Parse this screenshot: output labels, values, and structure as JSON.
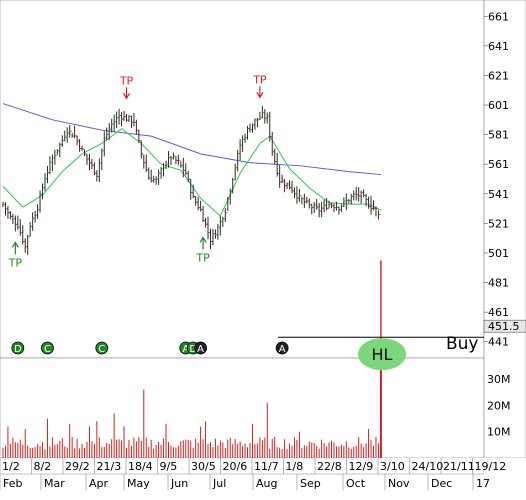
{
  "chart_data": {
    "type": "ohlc",
    "price_axis": {
      "ticks": [
        661,
        641,
        621,
        601,
        581,
        561,
        541,
        521,
        501,
        481,
        461,
        441
      ],
      "range": [
        430,
        672
      ],
      "last_price_label": "451.5",
      "last_price": 451.5
    },
    "volume_axis": {
      "ticks": [
        {
          "label": "30M",
          "value": 30
        },
        {
          "label": "20M",
          "value": 20
        },
        {
          "label": "10M",
          "value": 10
        }
      ],
      "range": [
        0,
        38
      ]
    },
    "date_labels": [
      "1/2",
      "8/2",
      "29/2",
      "21/3",
      "18/4",
      "9/5",
      "30/5",
      "20/6",
      "11/7",
      "1/8",
      "22/8",
      "12/9",
      "3/10",
      "24/10",
      "21/11",
      "19/12"
    ],
    "month_labels": [
      "Feb",
      "Mar",
      "Apr",
      "May",
      "Jun",
      "Jul",
      "Aug",
      "Sep",
      "Oct",
      "Nov",
      "Dec",
      "17"
    ],
    "price_series": {
      "anchors": [
        [
          0,
          534
        ],
        [
          3,
          525
        ],
        [
          6,
          520
        ],
        [
          9,
          505
        ],
        [
          11,
          520
        ],
        [
          14,
          532
        ],
        [
          17,
          552
        ],
        [
          20,
          565
        ],
        [
          23,
          574
        ],
        [
          26,
          584
        ],
        [
          29,
          580
        ],
        [
          32,
          570
        ],
        [
          35,
          562
        ],
        [
          38,
          554
        ],
        [
          41,
          578
        ],
        [
          44,
          588
        ],
        [
          47,
          594
        ],
        [
          50,
          592
        ],
        [
          53,
          590
        ],
        [
          56,
          568
        ],
        [
          59,
          552
        ],
        [
          62,
          550
        ],
        [
          65,
          560
        ],
        [
          68,
          566
        ],
        [
          71,
          562
        ],
        [
          74,
          555
        ],
        [
          77,
          538
        ],
        [
          80,
          530
        ],
        [
          82,
          520
        ],
        [
          84,
          510
        ],
        [
          87,
          518
        ],
        [
          90,
          530
        ],
        [
          93,
          552
        ],
        [
          96,
          574
        ],
        [
          99,
          584
        ],
        [
          102,
          590
        ],
        [
          105,
          594
        ],
        [
          107,
          592
        ],
        [
          109,
          570
        ],
        [
          112,
          550
        ],
        [
          116,
          546
        ],
        [
          120,
          538
        ],
        [
          124,
          533
        ],
        [
          128,
          530
        ],
        [
          132,
          534
        ],
        [
          136,
          532
        ],
        [
          139,
          536
        ],
        [
          142,
          540
        ],
        [
          145,
          540
        ],
        [
          148,
          534
        ],
        [
          151,
          530
        ],
        [
          153,
          523
        ],
        [
          154,
          520
        ]
      ],
      "ma_long": [
        [
          0,
          602
        ],
        [
          20,
          591
        ],
        [
          40,
          584
        ],
        [
          60,
          580
        ],
        [
          80,
          568
        ],
        [
          100,
          562
        ],
        [
          120,
          560
        ],
        [
          140,
          556
        ],
        [
          153,
          554
        ]
      ],
      "ma_short": [
        [
          0,
          546
        ],
        [
          8,
          532
        ],
        [
          16,
          540
        ],
        [
          24,
          556
        ],
        [
          32,
          568
        ],
        [
          40,
          575
        ],
        [
          48,
          585
        ],
        [
          56,
          575
        ],
        [
          64,
          561
        ],
        [
          72,
          557
        ],
        [
          80,
          538
        ],
        [
          88,
          526
        ],
        [
          96,
          555
        ],
        [
          104,
          575
        ],
        [
          108,
          580
        ],
        [
          116,
          558
        ],
        [
          124,
          545
        ],
        [
          132,
          535
        ],
        [
          140,
          534
        ],
        [
          148,
          534
        ],
        [
          153,
          530
        ]
      ],
      "breakout_candle": {
        "index": 153,
        "high": 496,
        "low": 440,
        "close": 451.5
      },
      "support_level": 444
    },
    "volume_series": {
      "base_level": 6,
      "spikes": [
        [
          2,
          12
        ],
        [
          9,
          11
        ],
        [
          18,
          15
        ],
        [
          27,
          13
        ],
        [
          35,
          12
        ],
        [
          38,
          14
        ],
        [
          45,
          17
        ],
        [
          49,
          12
        ],
        [
          57,
          26
        ],
        [
          66,
          13
        ],
        [
          80,
          12
        ],
        [
          82,
          14
        ],
        [
          101,
          13
        ],
        [
          107,
          21
        ],
        [
          120,
          10
        ],
        [
          148,
          11
        ]
      ],
      "last_bar": 36
    },
    "annotations": {
      "tp_markers": [
        {
          "label": "TP",
          "index": 5,
          "dir": "up"
        },
        {
          "label": "TP",
          "index": 50,
          "dir": "down"
        },
        {
          "label": "TP",
          "index": 81,
          "dir": "up"
        },
        {
          "label": "TP",
          "index": 104,
          "dir": "down"
        }
      ],
      "event_markers": [
        {
          "label": "D",
          "index": 6,
          "shape": "circle",
          "color": "#1f8a1f"
        },
        {
          "label": "C",
          "index": 18,
          "shape": "circle",
          "color": "#1f8a1f"
        },
        {
          "label": "C",
          "index": 40,
          "shape": "circle",
          "color": "#1f8a1f"
        },
        {
          "label": "A",
          "index": 74,
          "shape": "circle",
          "color": "#1f8a1f"
        },
        {
          "label": "D",
          "index": 77,
          "shape": "circle",
          "color": "#1f8a1f"
        },
        {
          "label": "A",
          "index": 80,
          "shape": "circle",
          "color": "#222222"
        },
        {
          "label": "A",
          "index": 113,
          "shape": "circle",
          "color": "#222222"
        }
      ],
      "hl_label": "HL",
      "buy_label": "Buy"
    },
    "colors": {
      "price_bar": "#2a2a2a",
      "up_tick": "#1fa01f",
      "down_tick": "#d42020",
      "ma_long": "#5b5bd6",
      "ma_short": "#33c24d",
      "volume": "#d42020",
      "tp": "#d42020",
      "tp_up": "#1f8a1f",
      "hl_fill": "#7cd67c",
      "grid": "#c8c8c8"
    }
  }
}
